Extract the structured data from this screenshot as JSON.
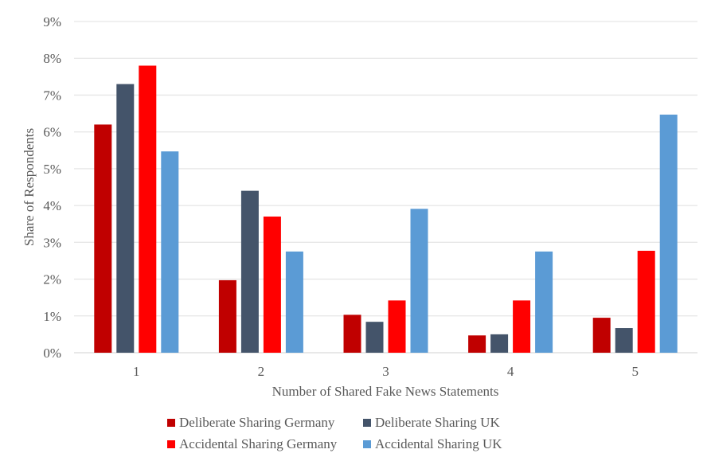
{
  "chart_data": {
    "type": "bar",
    "title": "",
    "xlabel": "Number of Shared Fake News Statements",
    "ylabel": "Share of Respondents",
    "categories": [
      "1",
      "2",
      "3",
      "4",
      "5"
    ],
    "ylim": [
      0,
      9
    ],
    "yticks": [
      "0%",
      "1%",
      "2%",
      "3%",
      "4%",
      "5%",
      "6%",
      "7%",
      "8%",
      "9%"
    ],
    "ytick_values": [
      0,
      1,
      2,
      3,
      4,
      5,
      6,
      7,
      8,
      9
    ],
    "grid": true,
    "legend_position": "bottom",
    "series": [
      {
        "name": "Deliberate Sharing Germany",
        "color": "#C00000",
        "values": [
          6.2,
          1.97,
          1.03,
          0.47,
          0.95
        ]
      },
      {
        "name": "Deliberate Sharing UK",
        "color": "#44546A",
        "values": [
          7.3,
          4.4,
          0.84,
          0.5,
          0.67
        ]
      },
      {
        "name": "Accidental Sharing Germany",
        "color": "#FF0000",
        "values": [
          7.8,
          3.7,
          1.42,
          1.42,
          2.77
        ]
      },
      {
        "name": "Accidental Sharing UK",
        "color": "#5B9BD5",
        "values": [
          5.47,
          2.75,
          3.91,
          2.75,
          6.47
        ]
      }
    ]
  }
}
